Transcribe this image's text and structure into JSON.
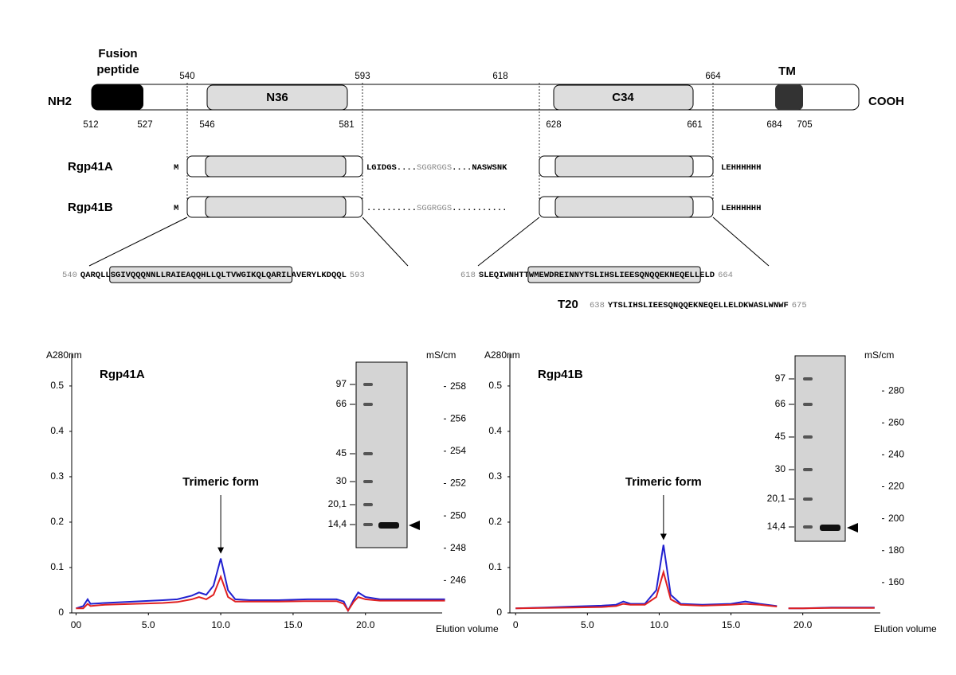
{
  "diagram": {
    "nh2": "NH2",
    "cooh": "COOH",
    "fusion_peptide": [
      "Fusion",
      "peptide"
    ],
    "tm": "TM",
    "n36": "N36",
    "c34": "C34",
    "top_positions": [
      540,
      593,
      618,
      664
    ],
    "bottom_positions": [
      512,
      527,
      546,
      581,
      628,
      661,
      684,
      705
    ],
    "constructs": [
      {
        "name": "Rgp41A",
        "start": "M",
        "linker": [
          "LGIDGS....",
          "SGGRGGS",
          "....NASWSNK"
        ],
        "tail": "LEHHHHHH"
      },
      {
        "name": "Rgp41B",
        "start": "M",
        "linker": [
          "..........",
          "SGGRGGS",
          "..........."
        ],
        "tail": "LEHHHHHH"
      }
    ],
    "sequences": [
      {
        "start": 540,
        "pre": "QARQLL",
        "core": "SGIVQQQNNLLRAIEAQQHLLQLTVWGIKQLQARIL",
        "post": "AVERYLKDQQL",
        "end": 593
      },
      {
        "start": 618,
        "pre": "SLEQIWNHTT",
        "core": "WMEWDREINNYTSLIHSLIEESQNQQEKNEQELL",
        "post": "ELD",
        "end": 664
      }
    ],
    "t20": {
      "label": "T20",
      "start": 638,
      "sequence": "YTSLIHSLIEESQNQQEKNEQELLELDKWASLWNWF",
      "end": 675
    }
  },
  "chart_data": [
    {
      "type": "line",
      "title": "Rgp41A",
      "ylabel": "A280nm",
      "y2label": "mS/cm",
      "xlabel": "Elution volume",
      "annotation": "Trimeric form",
      "gel_markers": [
        "97",
        "66",
        "45",
        "30",
        "20,1",
        "14,4"
      ],
      "x": [
        0,
        0.5,
        0.8,
        1,
        2,
        4,
        6,
        7,
        8,
        8.5,
        9,
        9.5,
        10,
        10.5,
        11,
        12,
        14,
        16,
        18,
        18.5,
        18.8,
        19.2,
        19.5,
        20,
        21,
        22,
        24,
        25.5
      ],
      "series": [
        {
          "color": "#2020d0",
          "values": [
            0.01,
            0.015,
            0.03,
            0.02,
            0.022,
            0.025,
            0.028,
            0.03,
            0.038,
            0.045,
            0.04,
            0.06,
            0.12,
            0.05,
            0.03,
            0.028,
            0.028,
            0.03,
            0.03,
            0.025,
            0.005,
            0.03,
            0.045,
            0.035,
            0.03,
            0.03,
            0.03,
            0.03
          ]
        },
        {
          "color": "#e02020",
          "values": [
            0.01,
            0.01,
            0.02,
            0.015,
            0.018,
            0.02,
            0.022,
            0.024,
            0.03,
            0.035,
            0.03,
            0.04,
            0.08,
            0.035,
            0.025,
            0.025,
            0.025,
            0.026,
            0.026,
            0.02,
            0.005,
            0.025,
            0.035,
            0.03,
            0.027,
            0.027,
            0.027,
            0.027
          ]
        }
      ],
      "xlim": [
        -0.3,
        25.3
      ],
      "xticks": [
        {
          "value": 0,
          "label": "00"
        },
        {
          "value": 5,
          "label": "5.0"
        },
        {
          "value": 10,
          "label": "10.0"
        },
        {
          "value": 15,
          "label": "15.0"
        },
        {
          "value": 20,
          "label": "20.0"
        }
      ],
      "ylim": [
        0,
        0.57
      ],
      "yticks": [
        0,
        0.1,
        0.2,
        0.3,
        0.4,
        0.5
      ],
      "y2lim": [
        244,
        260
      ],
      "y2ticks": [
        246,
        248,
        250,
        252,
        254,
        256,
        258
      ]
    },
    {
      "type": "line",
      "title": "Rgp41B",
      "ylabel": "A280nm",
      "y2label": "mS/cm",
      "xlabel": "Elution volume",
      "annotation": "Trimeric form",
      "gel_markers": [
        "97",
        "66",
        "45",
        "30",
        "20,1",
        "14,4"
      ],
      "x": [
        0,
        2,
        4,
        6,
        7,
        7.5,
        8,
        9,
        9.8,
        10.3,
        10.8,
        11.5,
        13,
        15,
        16,
        17,
        18.2,
        18.5,
        19,
        20,
        22,
        24,
        25
      ],
      "series": [
        {
          "color": "#2020d0",
          "values": [
            0.01,
            0.012,
            0.014,
            0.016,
            0.018,
            0.025,
            0.02,
            0.02,
            0.05,
            0.15,
            0.04,
            0.02,
            0.018,
            0.02,
            0.025,
            0.02,
            0.015,
            null,
            0.01,
            0.01,
            0.012,
            0.012,
            0.012
          ]
        },
        {
          "color": "#e02020",
          "values": [
            0.01,
            0.011,
            0.012,
            0.013,
            0.015,
            0.02,
            0.018,
            0.018,
            0.035,
            0.09,
            0.03,
            0.018,
            0.016,
            0.018,
            0.02,
            0.018,
            0.014,
            null,
            0.01,
            0.01,
            0.011,
            0.011,
            0.011
          ]
        }
      ],
      "xlim": [
        -0.4,
        25.4
      ],
      "xticks": [
        0,
        {
          "value": 5,
          "label": "5.0"
        },
        {
          "value": 10,
          "label": "10.0"
        },
        {
          "value": 15,
          "label": "15.0"
        },
        {
          "value": 20,
          "label": "20.0"
        }
      ],
      "ylim": [
        0,
        0.57
      ],
      "yticks": [
        0,
        0.1,
        0.2,
        0.3,
        0.4,
        0.5
      ],
      "y2lim": [
        141,
        303
      ],
      "y2ticks": [
        160,
        180,
        200,
        220,
        240,
        260,
        280
      ]
    }
  ]
}
